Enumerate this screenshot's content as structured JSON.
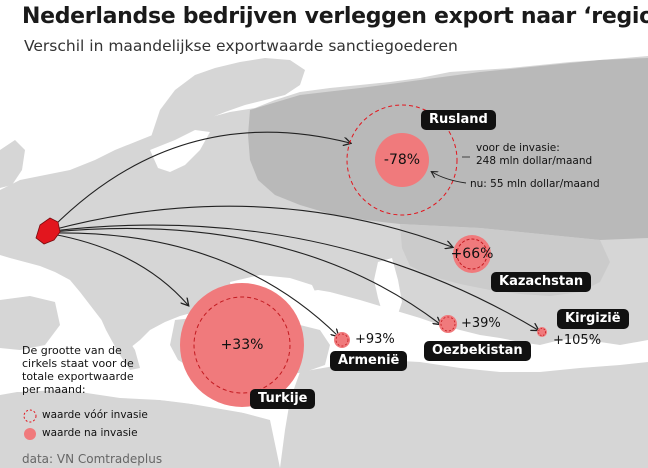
{
  "title": "Nederlandse bedrijven verleggen export naar ‘regio’",
  "subtitle": "Verschil in maandelijkse exportwaarde sanctiegoederen",
  "colors": {
    "land": "#d6d6d6",
    "sea": "#ffffff",
    "circle": "#f07a7c",
    "origin": "#e2161e",
    "arrow": "#222222",
    "label_bg": "#111111"
  },
  "countries": [
    {
      "name": "Rusland",
      "change": "-78%"
    },
    {
      "name": "Kazachstan",
      "change": "+66%"
    },
    {
      "name": "Turkije",
      "change": "+33%"
    },
    {
      "name": "Armenië",
      "change": "+93%"
    },
    {
      "name": "Oezbekistan",
      "change": "+39%"
    },
    {
      "name": "Kirgizië",
      "change": "+105%"
    }
  ],
  "russia_note": {
    "before": "voor de invasie:",
    "before_value": "248 mln dollar/maand",
    "after": "nu: 55 mln dollar/maand"
  },
  "legend": {
    "text": "De grootte van de cirkels staat voor de totale exportwaarde per maand:",
    "before": "waarde vóór invasie",
    "after": "waarde na invasie"
  },
  "source": "data: VN Comtradeplus"
}
